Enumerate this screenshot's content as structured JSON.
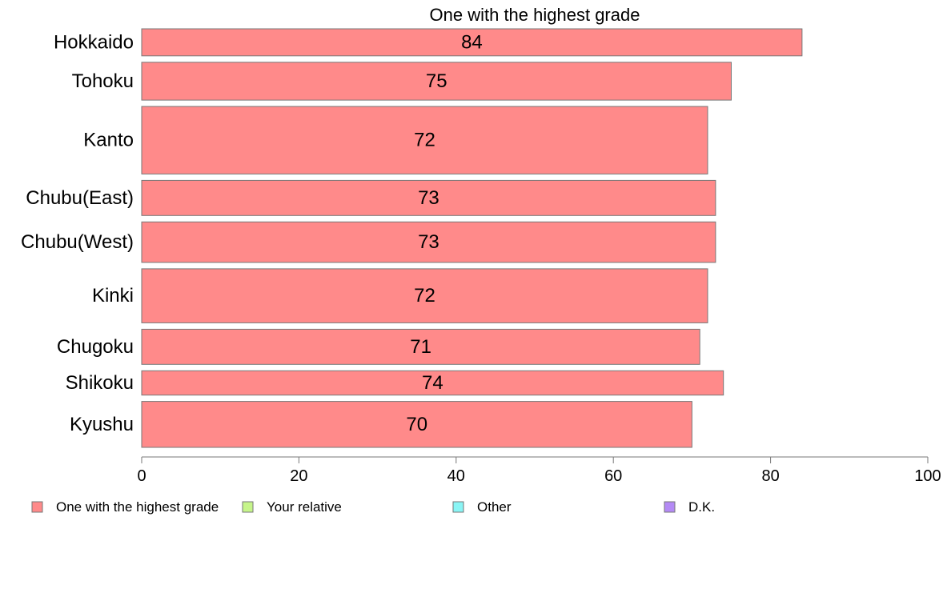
{
  "chart_data": {
    "type": "bar",
    "orientation": "horizontal",
    "title": "One with the highest grade",
    "categories": [
      "Hokkaido",
      "Tohoku",
      "Kanto",
      "Chubu(East)",
      "Chubu(West)",
      "Kinki",
      "Chugoku",
      "Shikoku",
      "Kyushu"
    ],
    "series": [
      {
        "name": "One with the highest grade",
        "values": [
          84,
          75,
          72,
          73,
          73,
          72,
          71,
          74,
          70
        ],
        "color": "#ff8a8a"
      }
    ],
    "value_labels": [
      "84",
      "75",
      "72",
      "73",
      "73",
      "72",
      "71",
      "74",
      "70"
    ],
    "relative_bar_thickness": [
      1.0,
      1.4,
      2.5,
      1.3,
      1.5,
      2.0,
      1.3,
      0.9,
      1.7
    ],
    "xlim": [
      0,
      100
    ],
    "x_ticks": [
      0,
      20,
      40,
      60,
      80,
      100
    ],
    "x_tick_labels": [
      "0",
      "20",
      "40",
      "60",
      "80",
      "100"
    ],
    "xlabel": "",
    "ylabel": "",
    "grid": false,
    "legend": {
      "placement": "bottom",
      "entries": [
        {
          "label": "One with the highest grade",
          "color": "#ff8a8a"
        },
        {
          "label": "Your relative",
          "color": "#c6f58a"
        },
        {
          "label": "Other",
          "color": "#8af5f5"
        },
        {
          "label": "D.K.",
          "color": "#b48af5"
        }
      ]
    }
  }
}
